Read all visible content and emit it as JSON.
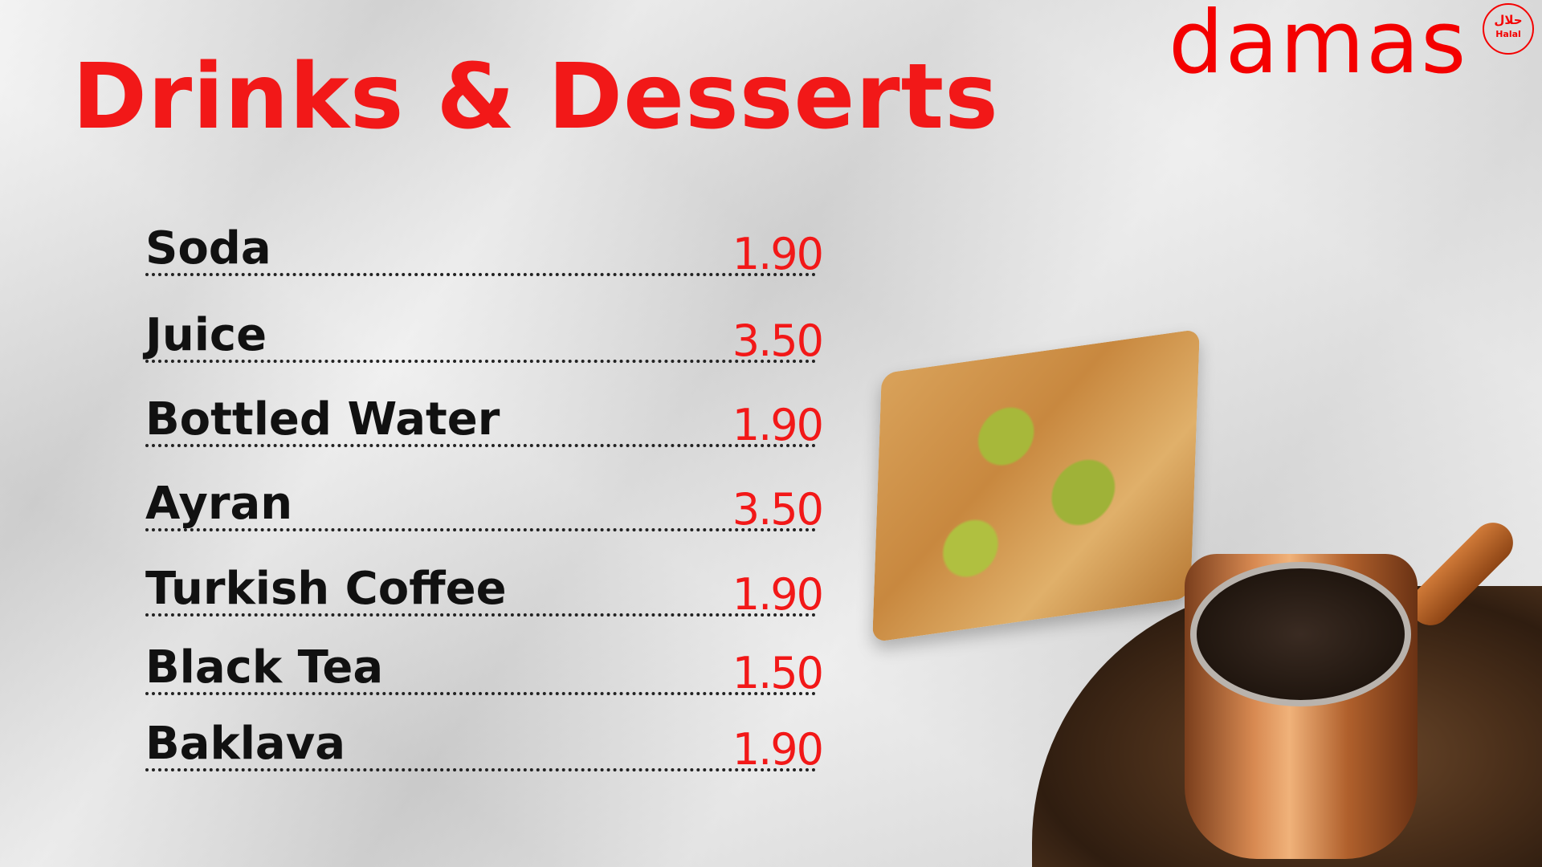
{
  "header": {
    "title": "Drinks & Desserts"
  },
  "brand": {
    "logo": "damas",
    "badge_arabic": "حلال",
    "badge_label": "Halal",
    "color": "#f40000"
  },
  "menu": {
    "items": [
      {
        "name": "Soda",
        "price": "1.90"
      },
      {
        "name": "Juice",
        "price": "3.50"
      },
      {
        "name": "Bottled Water",
        "price": "1.90"
      },
      {
        "name": "Ayran",
        "price": "3.50"
      },
      {
        "name": "Turkish Coffee",
        "price": "1.90"
      },
      {
        "name": "Black Tea",
        "price": "1.50"
      },
      {
        "name": "Baklava",
        "price": "1.90"
      }
    ]
  },
  "colors": {
    "accent": "#f21818",
    "text": "#111111"
  }
}
